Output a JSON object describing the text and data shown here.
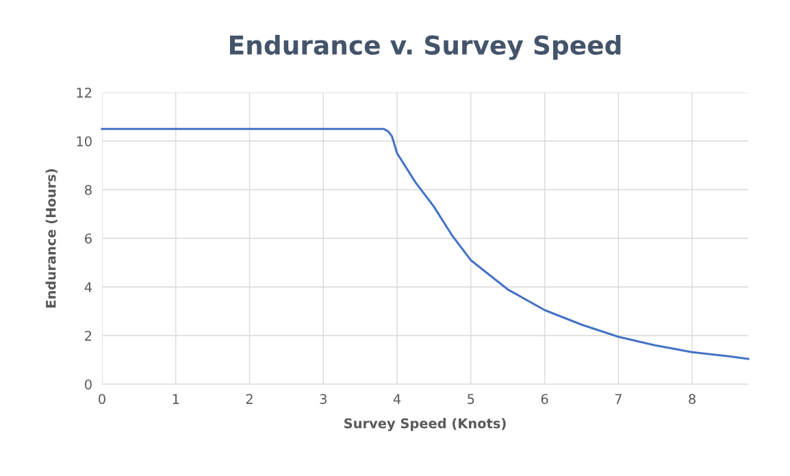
{
  "chart_data": {
    "type": "line",
    "title": "Endurance v. Survey Speed",
    "xlabel": "Survey Speed (Knots)",
    "ylabel": "Endurance (Hours)",
    "series": [
      {
        "color": "#4472c4",
        "x": [
          0,
          1,
          2,
          3,
          3.75,
          3.82,
          3.88,
          3.93,
          4,
          4.25,
          4.5,
          4.75,
          5,
          5.5,
          6,
          6.5,
          7,
          7.5,
          8,
          8.5,
          8.76
        ],
        "values": [
          10.5,
          10.5,
          10.5,
          10.5,
          10.5,
          10.5,
          10.4,
          10.2,
          9.5,
          8.3,
          7.3,
          6.1,
          5.1,
          3.9,
          3.05,
          2.45,
          1.95,
          1.6,
          1.32,
          1.15,
          1.04
        ]
      }
    ],
    "xlim": [
      0,
      8.76
    ],
    "xticks": [
      0,
      1,
      2,
      3,
      4,
      5,
      6,
      7,
      8
    ],
    "ylim": [
      0,
      12
    ],
    "yticks": [
      0,
      2,
      4,
      6,
      8,
      10,
      12
    ],
    "grid": true,
    "legend": false,
    "marker": "none",
    "line_style": "solid"
  }
}
